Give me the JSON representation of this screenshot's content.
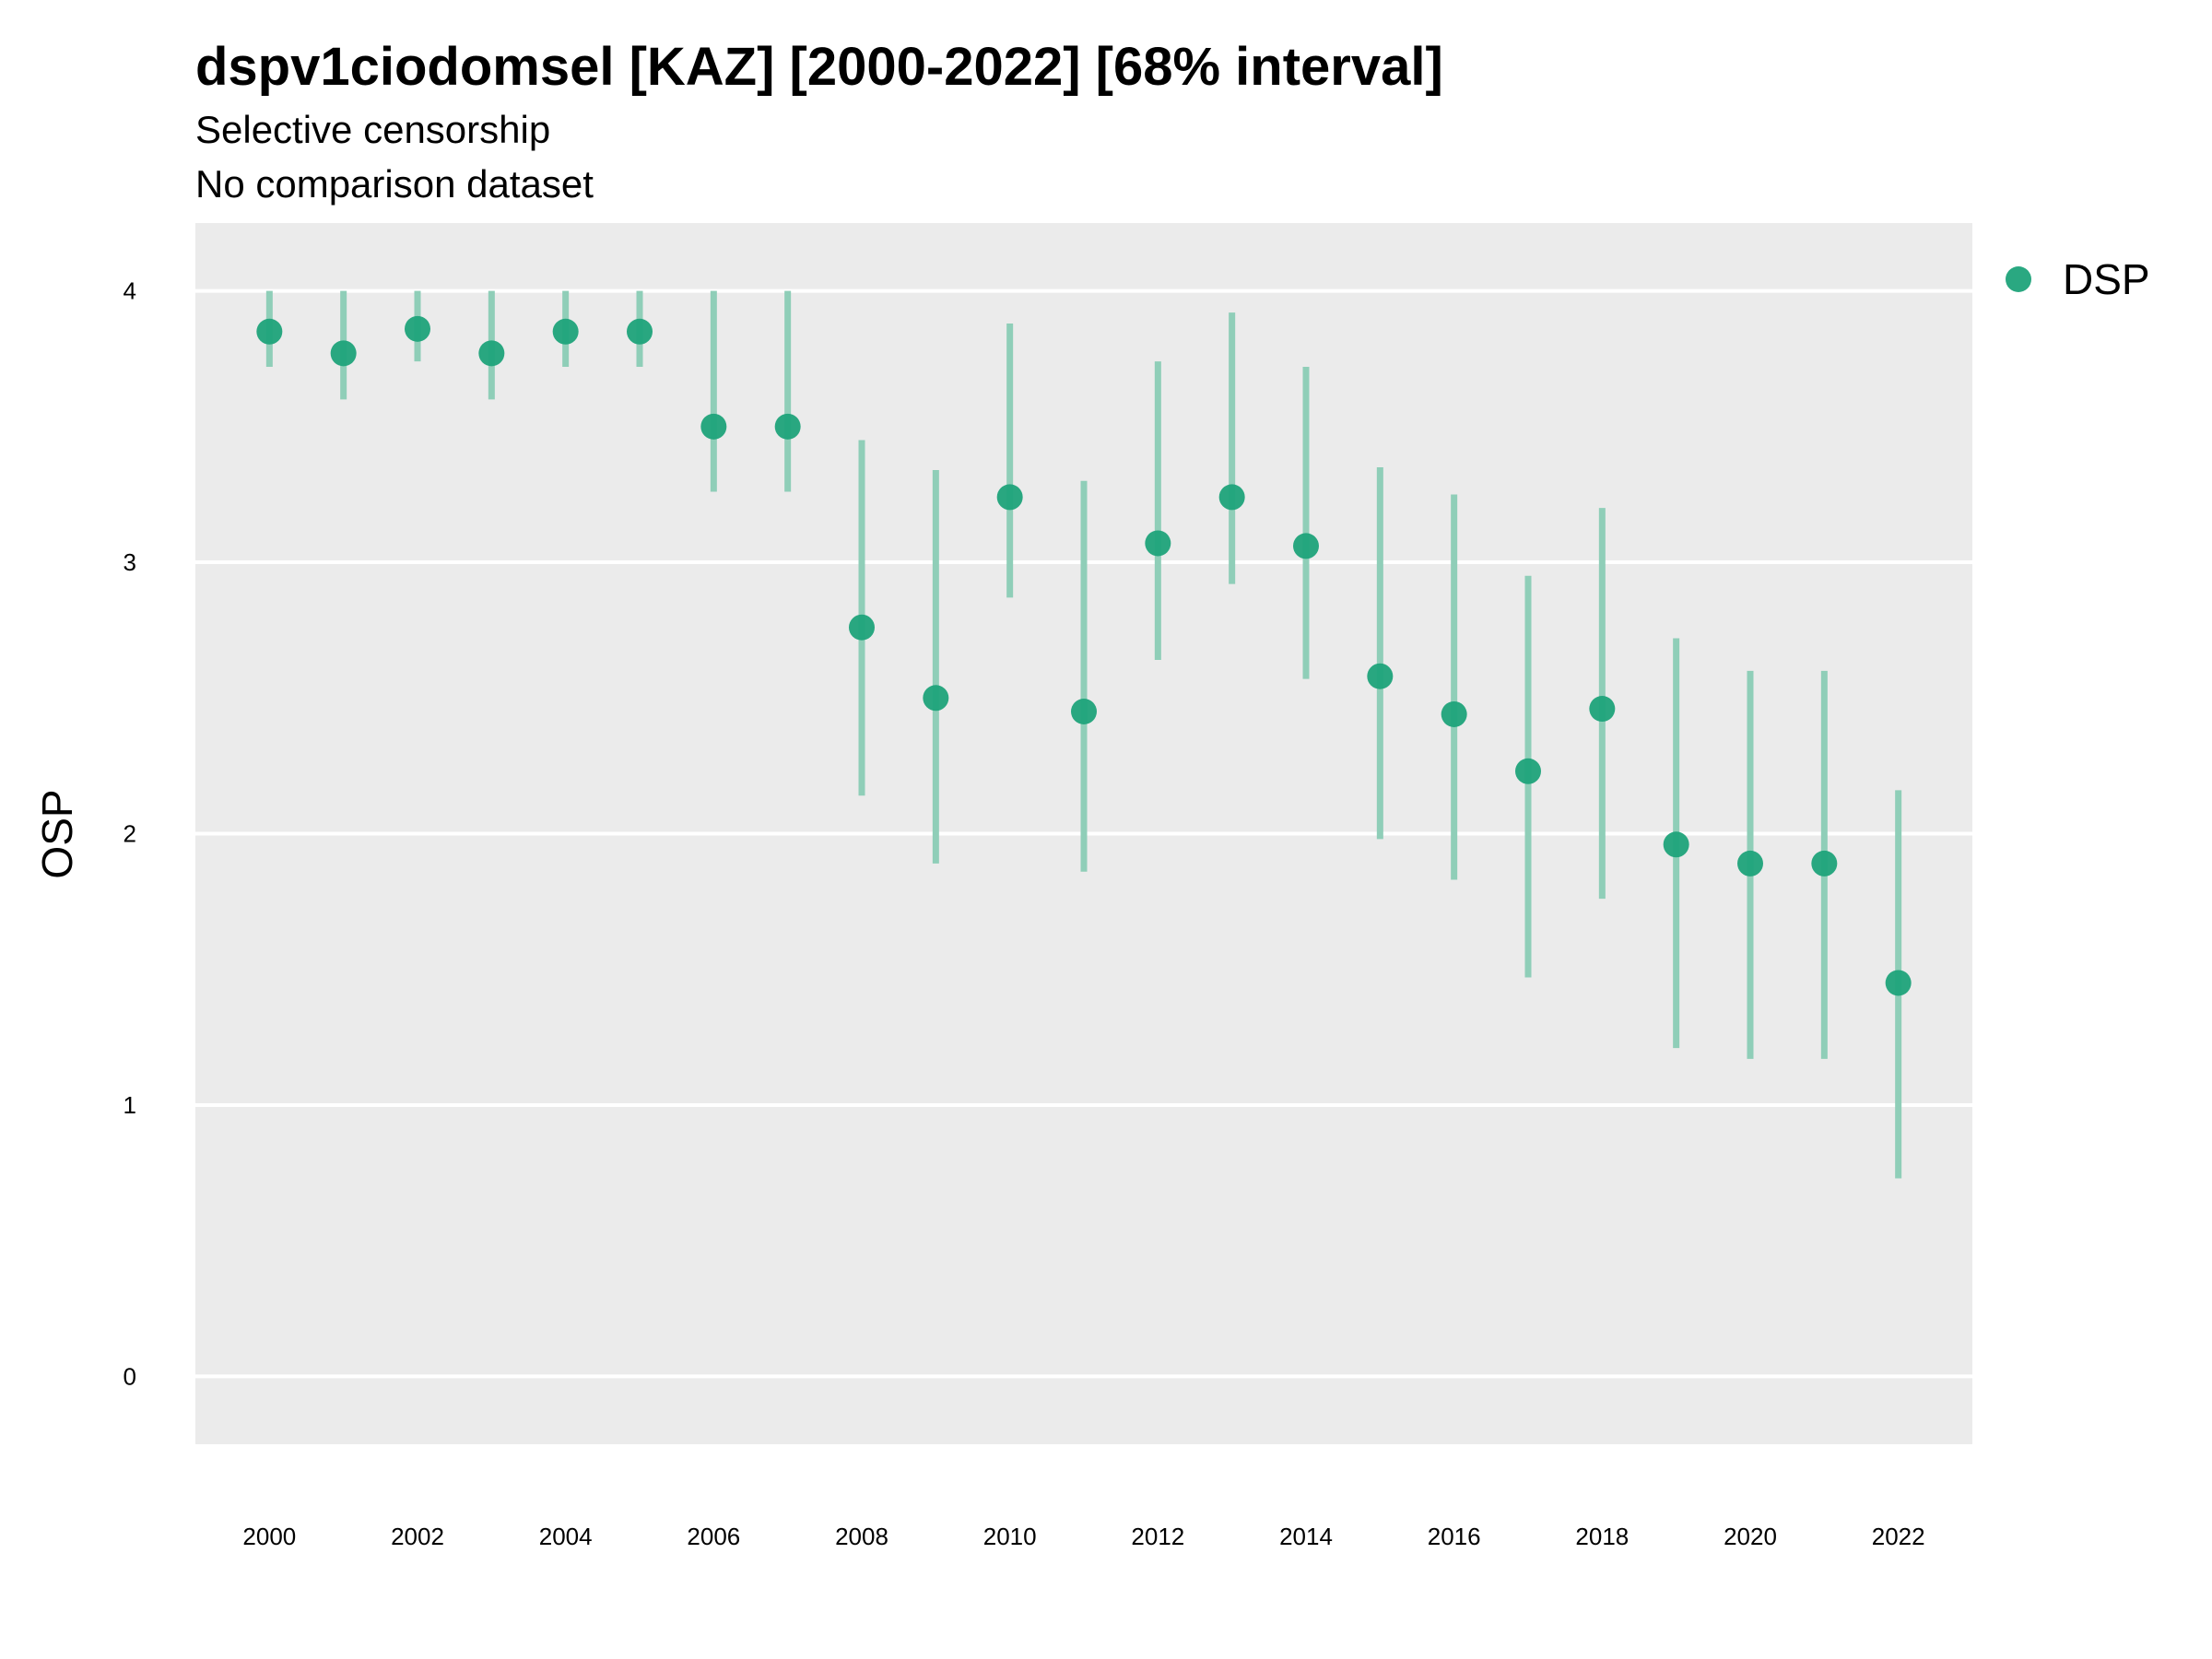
{
  "chart_data": {
    "type": "scatter",
    "title": "dspv1ciodomsel [KAZ] [2000-2022] [68% interval]",
    "subtitle": "Selective censorship",
    "subtitle2": "No comparison dataset",
    "xlabel": "",
    "ylabel": "OSP",
    "ylim": [
      -0.25,
      4.25
    ],
    "xlim": [
      1999,
      2023
    ],
    "x_ticks": [
      "2000",
      "2002",
      "2004",
      "2006",
      "2008",
      "2010",
      "2012",
      "2014",
      "2016",
      "2018",
      "2020",
      "2022"
    ],
    "y_ticks": [
      "0",
      "1",
      "2",
      "3",
      "4"
    ],
    "grid": true,
    "legend_position": "right",
    "colors": {
      "point": "#1fa37a",
      "interval": "#8fceb8",
      "panel": "#ebebeb",
      "grid": "#ffffff"
    },
    "series": [
      {
        "name": "DSP",
        "x": [
          2000,
          2001,
          2002,
          2003,
          2004,
          2005,
          2006,
          2007,
          2008,
          2009,
          2010,
          2011,
          2012,
          2013,
          2014,
          2015,
          2016,
          2017,
          2018,
          2019,
          2020,
          2021,
          2022
        ],
        "values": [
          3.85,
          3.77,
          3.86,
          3.77,
          3.85,
          3.85,
          3.5,
          3.5,
          2.76,
          2.5,
          3.24,
          2.45,
          3.07,
          3.24,
          3.06,
          2.58,
          2.44,
          2.23,
          2.46,
          1.96,
          1.89,
          1.89,
          1.45
        ],
        "lower": [
          3.72,
          3.6,
          3.74,
          3.6,
          3.72,
          3.72,
          3.26,
          3.26,
          2.14,
          1.89,
          2.87,
          1.86,
          2.64,
          2.92,
          2.57,
          1.98,
          1.83,
          1.47,
          1.76,
          1.21,
          1.17,
          1.17,
          0.73
        ],
        "upper": [
          4.0,
          4.0,
          4.0,
          4.0,
          4.0,
          4.0,
          4.0,
          4.0,
          3.45,
          3.34,
          3.88,
          3.3,
          3.74,
          3.92,
          3.72,
          3.35,
          3.25,
          2.95,
          3.2,
          2.72,
          2.6,
          2.6,
          2.16
        ]
      }
    ]
  }
}
